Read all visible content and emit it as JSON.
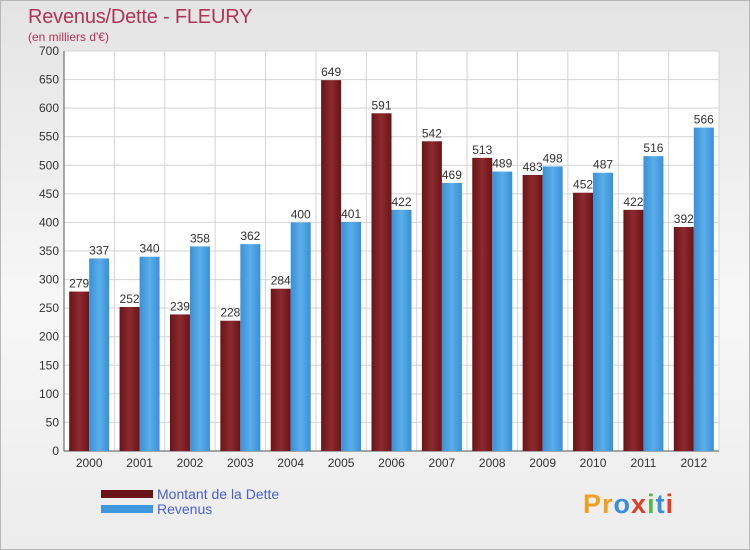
{
  "header": {
    "title": "Revenus/Dette - FLEURY",
    "subtitle": "(en milliers d'€)"
  },
  "colors": {
    "dette": "#7a1a1e",
    "revenus": "#3f97dd",
    "title": "#b0335a",
    "legend_text": "#4a5fd0"
  },
  "chart_data": {
    "type": "bar",
    "categories": [
      "2000",
      "2001",
      "2002",
      "2003",
      "2004",
      "2005",
      "2006",
      "2007",
      "2008",
      "2009",
      "2010",
      "2011",
      "2012"
    ],
    "series": [
      {
        "name": "Montant de la Dette",
        "values": [
          279,
          252,
          239,
          228,
          284,
          649,
          591,
          542,
          513,
          483,
          452,
          422,
          392
        ]
      },
      {
        "name": "Revenus",
        "values": [
          337,
          340,
          358,
          362,
          400,
          401,
          422,
          469,
          489,
          498,
          487,
          516,
          566
        ]
      }
    ],
    "title": "Revenus/Dette - FLEURY",
    "ylabel": "(en milliers d'€)",
    "ylim": [
      0,
      700
    ],
    "yticks": [
      0,
      50,
      100,
      150,
      200,
      250,
      300,
      350,
      400,
      450,
      500,
      550,
      600,
      650,
      700
    ],
    "grid": true,
    "legend": "bottom-left"
  },
  "legend": {
    "items": [
      {
        "label": "Montant de la Dette"
      },
      {
        "label": "Revenus"
      }
    ]
  },
  "logo": {
    "letters": [
      "P",
      "r",
      "o",
      "x",
      "i",
      "t",
      "i"
    ],
    "colors": [
      "#f0a020",
      "#f0a020",
      "#3a8fd8",
      "#e0402a",
      "#5ab84a",
      "#3a8fd8",
      "#e0402a"
    ]
  }
}
